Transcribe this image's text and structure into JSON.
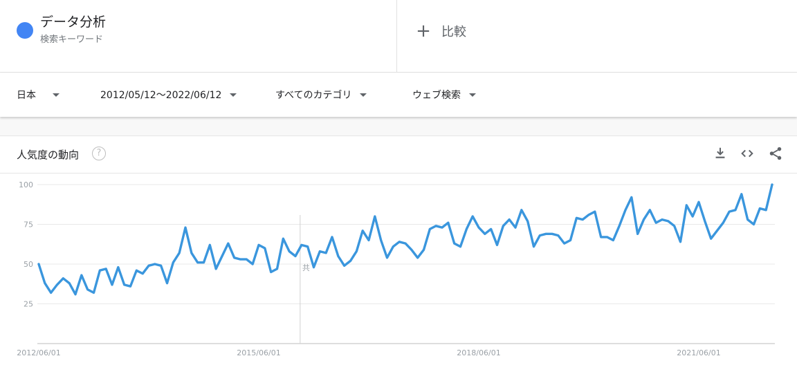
{
  "term": {
    "name": "データ分析",
    "type_label": "検索キーワード",
    "color": "#4285f4"
  },
  "compare": {
    "plus": "+",
    "label": "比較"
  },
  "filters": {
    "region": "日本",
    "date_range": "2012/05/12～2022/06/12",
    "category": "すべてのカテゴリ",
    "search_type": "ウェブ検索"
  },
  "card": {
    "title": "人気度の動向",
    "help": "?",
    "icons": [
      "download-icon",
      "embed-code-icon",
      "share-icon"
    ]
  },
  "chart_data": {
    "type": "line",
    "title": "",
    "xlabel": "",
    "ylabel": "",
    "ylim": [
      0,
      100
    ],
    "y_ticks": [
      25,
      50,
      75,
      100
    ],
    "x_tick_labels": [
      "2012/06/01",
      "2015/06/01",
      "2018/06/01",
      "2021/06/01"
    ],
    "x_tick_month_index": [
      0,
      36,
      72,
      108
    ],
    "annotation": {
      "month_index": 43,
      "label": "共"
    },
    "grid": true,
    "series": [
      {
        "color": "#3a96dd",
        "start": "2012/06/01",
        "interval": "month",
        "values": [
          50,
          38,
          32,
          37,
          41,
          38,
          31,
          43,
          34,
          32,
          46,
          47,
          37,
          48,
          37,
          36,
          46,
          44,
          49,
          50,
          49,
          38,
          51,
          57,
          73,
          57,
          51,
          51,
          62,
          47,
          55,
          63,
          54,
          53,
          53,
          50,
          62,
          60,
          45,
          47,
          66,
          58,
          55,
          62,
          61,
          48,
          58,
          57,
          67,
          55,
          49,
          52,
          58,
          71,
          65,
          80,
          65,
          54,
          61,
          64,
          63,
          59,
          54,
          59,
          72,
          74,
          73,
          76,
          63,
          61,
          72,
          80,
          73,
          69,
          72,
          62,
          74,
          78,
          73,
          84,
          77,
          61,
          68,
          69,
          69,
          68,
          63,
          65,
          79,
          78,
          81,
          83,
          67,
          67,
          65,
          74,
          84,
          92,
          69,
          78,
          84,
          76,
          78,
          77,
          74,
          64,
          87,
          80,
          89,
          77,
          66,
          71,
          76,
          83,
          84,
          94,
          78,
          75,
          85,
          84,
          100
        ]
      }
    ]
  }
}
